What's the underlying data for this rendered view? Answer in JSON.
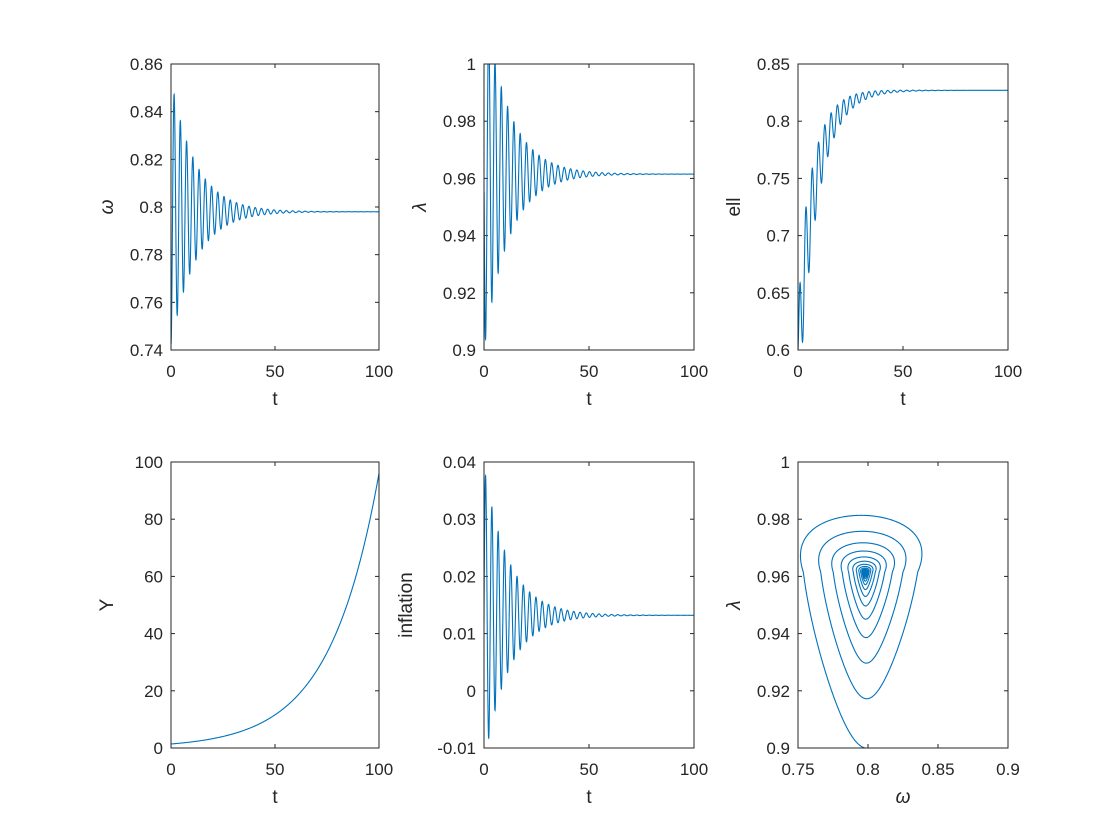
{
  "figure": {
    "background": "#ffffff",
    "line_color": "#0072BD",
    "axis_color": "#262626"
  },
  "chart_data": [
    {
      "type": "line",
      "xlabel": "t",
      "ylabel": "ω",
      "ylabel_style": "italic",
      "xlim": [
        0,
        100
      ],
      "ylim": [
        0.74,
        0.86
      ],
      "xticks": [
        "0",
        "50",
        "100"
      ],
      "yticks": [
        "0.74",
        "0.76",
        "0.78",
        "0.8",
        "0.82",
        "0.84",
        "0.86"
      ],
      "series": [
        {
          "kind": "damped_oscillation",
          "t_range": [
            0,
            100
          ],
          "start": 0.76,
          "equilibrium": 0.798,
          "amplitude": 0.056,
          "decay_rate": 0.085,
          "period": 3.0,
          "phase": -1.5708
        }
      ]
    },
    {
      "type": "line",
      "xlabel": "t",
      "ylabel": "λ",
      "ylabel_style": "italic",
      "xlim": [
        0,
        100
      ],
      "ylim": [
        0.9,
        1
      ],
      "xticks": [
        "0",
        "50",
        "100"
      ],
      "yticks": [
        "0.9",
        "0.92",
        "0.94",
        "0.96",
        "0.98",
        "1"
      ],
      "series": [
        {
          "kind": "damped_oscillation",
          "t_range": [
            0,
            100
          ],
          "start": 0.9,
          "equilibrium": 0.9615,
          "amplitude": 0.0615,
          "decay_rate": 0.085,
          "period": 3.0,
          "phase": 3.1416
        }
      ]
    },
    {
      "type": "line",
      "xlabel": "t",
      "ylabel": "ell",
      "ylabel_style": "normal",
      "xlim": [
        0,
        100
      ],
      "ylim": [
        0.6,
        0.85
      ],
      "xticks": [
        "0",
        "50",
        "100"
      ],
      "yticks": [
        "0.6",
        "0.65",
        "0.7",
        "0.75",
        "0.8",
        "0.85"
      ],
      "series": [
        {
          "kind": "rising_oscillation",
          "t_range": [
            0,
            100
          ],
          "start": 0.6,
          "equilibrium": 0.827,
          "rise_rate": 0.12,
          "amplitude": 0.06,
          "decay_rate": 0.09,
          "period": 3.0
        }
      ]
    },
    {
      "type": "line",
      "xlabel": "t",
      "ylabel": "Y",
      "ylabel_style": "normal",
      "xlim": [
        0,
        100
      ],
      "ylim": [
        0,
        100
      ],
      "xticks": [
        "0",
        "50",
        "100"
      ],
      "yticks": [
        "0",
        "20",
        "40",
        "60",
        "80",
        "100"
      ],
      "series": [
        {
          "kind": "exponential",
          "t_range": [
            0,
            100
          ],
          "start": 1.4,
          "end": 96
        }
      ]
    },
    {
      "type": "line",
      "xlabel": "t",
      "ylabel": "inflation",
      "ylabel_style": "normal",
      "xlim": [
        0,
        100
      ],
      "ylim": [
        -0.01,
        0.04
      ],
      "xticks": [
        "0",
        "50",
        "100"
      ],
      "yticks": [
        "-0.01",
        "0",
        "0.01",
        "0.02",
        "0.03",
        "0.04"
      ],
      "series": [
        {
          "kind": "damped_oscillation",
          "t_range": [
            0,
            100
          ],
          "start": 0.012,
          "equilibrium": 0.0132,
          "amplitude": 0.026,
          "decay_rate": 0.085,
          "period": 3.0,
          "phase": 0.0
        }
      ]
    },
    {
      "type": "line",
      "xlabel": "ω",
      "ylabel": "λ",
      "xlabel_style": "italic",
      "ylabel_style": "italic",
      "xlim": [
        0.75,
        0.9
      ],
      "ylim": [
        0.9,
        1
      ],
      "xticks": [
        "0.75",
        "0.8",
        "0.85",
        "0.9"
      ],
      "yticks": [
        "0.9",
        "0.92",
        "0.94",
        "0.96",
        "0.98",
        "1"
      ],
      "series": [
        {
          "kind": "phase_spiral",
          "start": [
            0.798,
            0.9
          ],
          "center": [
            0.798,
            0.9615
          ],
          "loops": 16
        }
      ]
    }
  ]
}
